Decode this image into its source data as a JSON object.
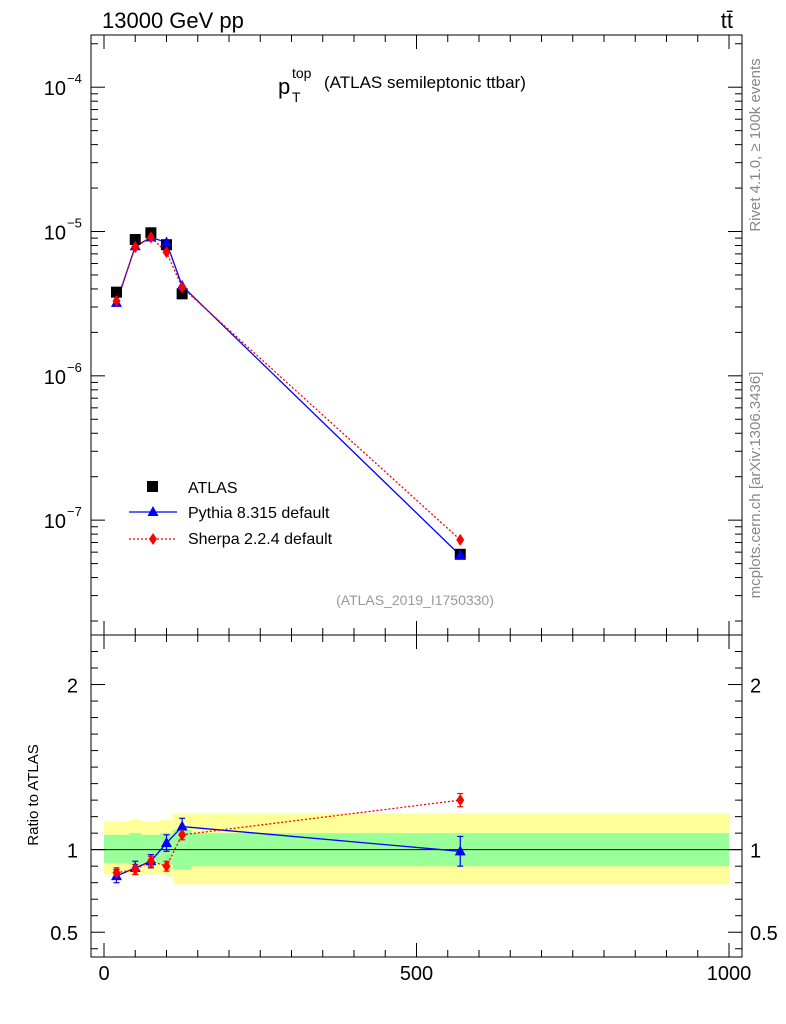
{
  "header": {
    "energy_label": "13000 GeV pp",
    "process_label": "tt̄"
  },
  "side_labels": {
    "rivet": "Rivet 4.1.0, ≥ 100k events",
    "mcplots": "mcplots.cern.ch [arXiv:1306.3436]"
  },
  "chart_data": {
    "type": "line",
    "title_main": "p",
    "title_sup": "top",
    "title_sub": "T",
    "title_rest": "(ATLAS semileptonic ttbar)",
    "analysis_tag": "(ATLAS_2019_I1750330)",
    "xlim": [
      0,
      1000
    ],
    "upper_panel": {
      "yscale": "log",
      "ylim": [
        1.6e-08,
        0.00023
      ],
      "yticks": [
        {
          "value": 0.0001,
          "base": "10",
          "exp": "−4"
        },
        {
          "value": 1e-05,
          "base": "10",
          "exp": "−5"
        },
        {
          "value": 1e-06,
          "base": "10",
          "exp": "−6"
        },
        {
          "value": 1e-07,
          "base": "10",
          "exp": "−7"
        }
      ]
    },
    "lower_panel": {
      "ylabel": "Ratio to ATLAS",
      "ylim": [
        0.35,
        2.3
      ],
      "yticks": [
        {
          "value": 0.5,
          "label": "0.5"
        },
        {
          "value": 1,
          "label": "1"
        },
        {
          "value": 2,
          "label": "2"
        }
      ],
      "band_edges": [
        0,
        40,
        60,
        90,
        110,
        140,
        1000
      ],
      "inner_band": [
        [
          0.92,
          1.09
        ],
        [
          0.91,
          1.1
        ],
        [
          0.92,
          1.09
        ],
        [
          0.91,
          1.1
        ],
        [
          0.88,
          1.12
        ],
        [
          0.9,
          1.1
        ]
      ],
      "outer_band": [
        [
          0.85,
          1.17
        ],
        [
          0.84,
          1.18
        ],
        [
          0.85,
          1.17
        ],
        [
          0.84,
          1.18
        ],
        [
          0.79,
          1.22
        ],
        [
          0.79,
          1.22
        ]
      ]
    },
    "xticks": [
      {
        "value": 0,
        "label": "0"
      },
      {
        "value": 500,
        "label": "500"
      },
      {
        "value": 1000,
        "label": "1000"
      }
    ],
    "series": [
      {
        "name": "ATLAS",
        "color": "#000000",
        "marker": "square",
        "x": [
          20,
          50,
          75,
          100,
          125,
          570
        ],
        "values": [
          3.8e-06,
          8.8e-06,
          9.8e-06,
          8.1e-06,
          3.7e-06,
          5.8e-08
        ],
        "ratio": [
          1,
          1,
          1,
          1,
          1,
          1
        ],
        "ratio_err": [
          0,
          0,
          0,
          0,
          0,
          0
        ]
      },
      {
        "name": "Pythia 8.315 default",
        "color": "#0000ff",
        "marker": "triangle",
        "line": "solid",
        "x": [
          20,
          50,
          75,
          100,
          125,
          570
        ],
        "values": [
          3.2e-06,
          7.9e-06,
          9.1e-06,
          8.4e-06,
          4.2e-06,
          5.7e-08
        ],
        "ratio": [
          0.84,
          0.89,
          0.93,
          1.04,
          1.14,
          0.99
        ],
        "ratio_err": [
          0.04,
          0.04,
          0.04,
          0.05,
          0.05,
          0.09
        ]
      },
      {
        "name": "Sherpa 2.2.4 default",
        "color": "#ff0000",
        "marker": "diamond",
        "line": "dotted",
        "x": [
          20,
          50,
          75,
          100,
          125,
          570
        ],
        "values": [
          3.3e-06,
          7.8e-06,
          9.1e-06,
          7.2e-06,
          4.1e-06,
          7.3e-08
        ],
        "ratio": [
          0.86,
          0.88,
          0.93,
          0.9,
          1.09,
          1.3
        ],
        "ratio_err": [
          0.03,
          0.03,
          0.03,
          0.03,
          0.03,
          0.04
        ]
      }
    ]
  }
}
